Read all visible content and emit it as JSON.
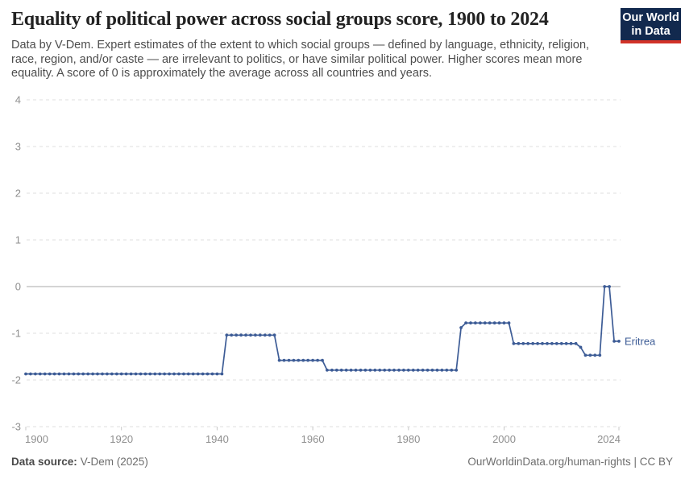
{
  "header": {
    "title": "Equality of political power across social groups score, 1900 to 2024",
    "subtitle": "Data by V-Dem. Expert estimates of the extent to which social groups — defined by language, ethnicity, religion, race, region, and/or caste — are irrelevant to politics, or have similar political power. Higher scores mean more equality. A score of 0 is approximately the average across all countries and years.",
    "logo": {
      "line1": "Our World",
      "line2": "in Data",
      "bg_color": "#12294e",
      "bar_color": "#d13228"
    }
  },
  "chart_data": {
    "type": "line",
    "title": "Equality of political power across social groups score, 1900 to 2024",
    "entity": "Eritrea",
    "x_start": 1900,
    "x_end": 2024,
    "xticks": [
      1900,
      1920,
      1940,
      1960,
      1980,
      2000,
      2024
    ],
    "yticks": [
      4,
      3,
      2,
      1,
      0,
      -1,
      -2,
      -3
    ],
    "ylim": [
      -3,
      4
    ],
    "grid": "horizontal-dashed",
    "zero_line_solid": true,
    "legend_position": "end-of-line-label",
    "series": [
      {
        "name": "Eritrea",
        "color": "#3d5c96",
        "step_segments": [
          {
            "from": 1900,
            "to": 1941,
            "value": -1.87
          },
          {
            "from": 1942,
            "to": 1952,
            "value": -1.04
          },
          {
            "from": 1953,
            "to": 1962,
            "value": -1.58
          },
          {
            "from": 1963,
            "to": 1990,
            "value": -1.79
          },
          {
            "from": 1991,
            "to": 1991,
            "value": -0.88
          },
          {
            "from": 1992,
            "to": 2001,
            "value": -0.78
          },
          {
            "from": 2002,
            "to": 2015,
            "value": -1.22
          },
          {
            "from": 2016,
            "to": 2016,
            "value": -1.3
          },
          {
            "from": 2017,
            "to": 2020,
            "value": -1.47
          },
          {
            "from": 2021,
            "to": 2022,
            "value": 0
          },
          {
            "from": 2023,
            "to": 2024,
            "value": -1.17
          }
        ]
      }
    ]
  },
  "footer": {
    "source_label": "Data source:",
    "source_value": "V-Dem (2025)",
    "rights": "OurWorldinData.org/human-rights | CC BY"
  },
  "colors": {
    "line": "#3d5c96",
    "grid": "#dfdfdf",
    "zero_line": "#a8a8a8",
    "tick_text": "#8f8f8f",
    "tick_mark": "#c8c8c8"
  }
}
